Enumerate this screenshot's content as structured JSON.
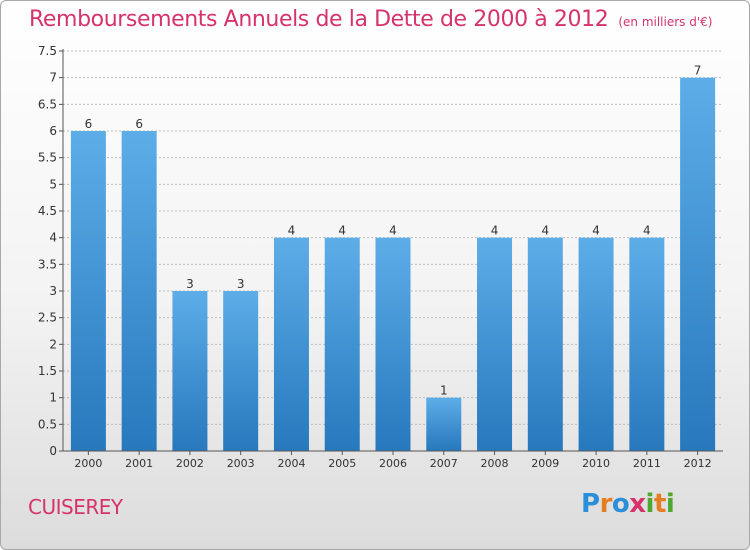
{
  "header": {
    "title": "Remboursements Annuels de la Dette de 2000 à 2012",
    "unit": "(en milliers d'€)"
  },
  "footer": {
    "city": "CUISEREY",
    "logo": {
      "letters": [
        "P",
        "r",
        "o",
        "x",
        "i",
        "t",
        "i"
      ],
      "colors": [
        "#2a8fd8",
        "#e57e22",
        "#2a8fd8",
        "#d6336c",
        "#4da832",
        "#e57e22",
        "#4da832"
      ]
    }
  },
  "colors": {
    "accent": "#d6336c",
    "bar_light": "#5dade8",
    "bar_dark": "#2778bd",
    "grid": "#bdbdbd"
  },
  "chart_data": {
    "type": "bar",
    "categories": [
      "2000",
      "2001",
      "2002",
      "2003",
      "2004",
      "2005",
      "2006",
      "2007",
      "2008",
      "2009",
      "2010",
      "2011",
      "2012"
    ],
    "values": [
      6,
      6,
      3,
      3,
      4,
      4,
      4,
      1,
      4,
      4,
      4,
      4,
      7
    ],
    "ylim": [
      0,
      7.5
    ],
    "yticks": [
      0,
      0.5,
      1,
      1.5,
      2,
      2.5,
      3,
      3.5,
      4,
      4.5,
      5,
      5.5,
      6,
      6.5,
      7,
      7.5
    ],
    "ytick_labels": [
      "0",
      "0.5",
      "1",
      "1.5",
      "2",
      "2.5",
      "3",
      "3.5",
      "4",
      "4.5",
      "5",
      "5.5",
      "6",
      "6.5",
      "7",
      "7.5"
    ],
    "grid": true,
    "data_labels": true
  }
}
